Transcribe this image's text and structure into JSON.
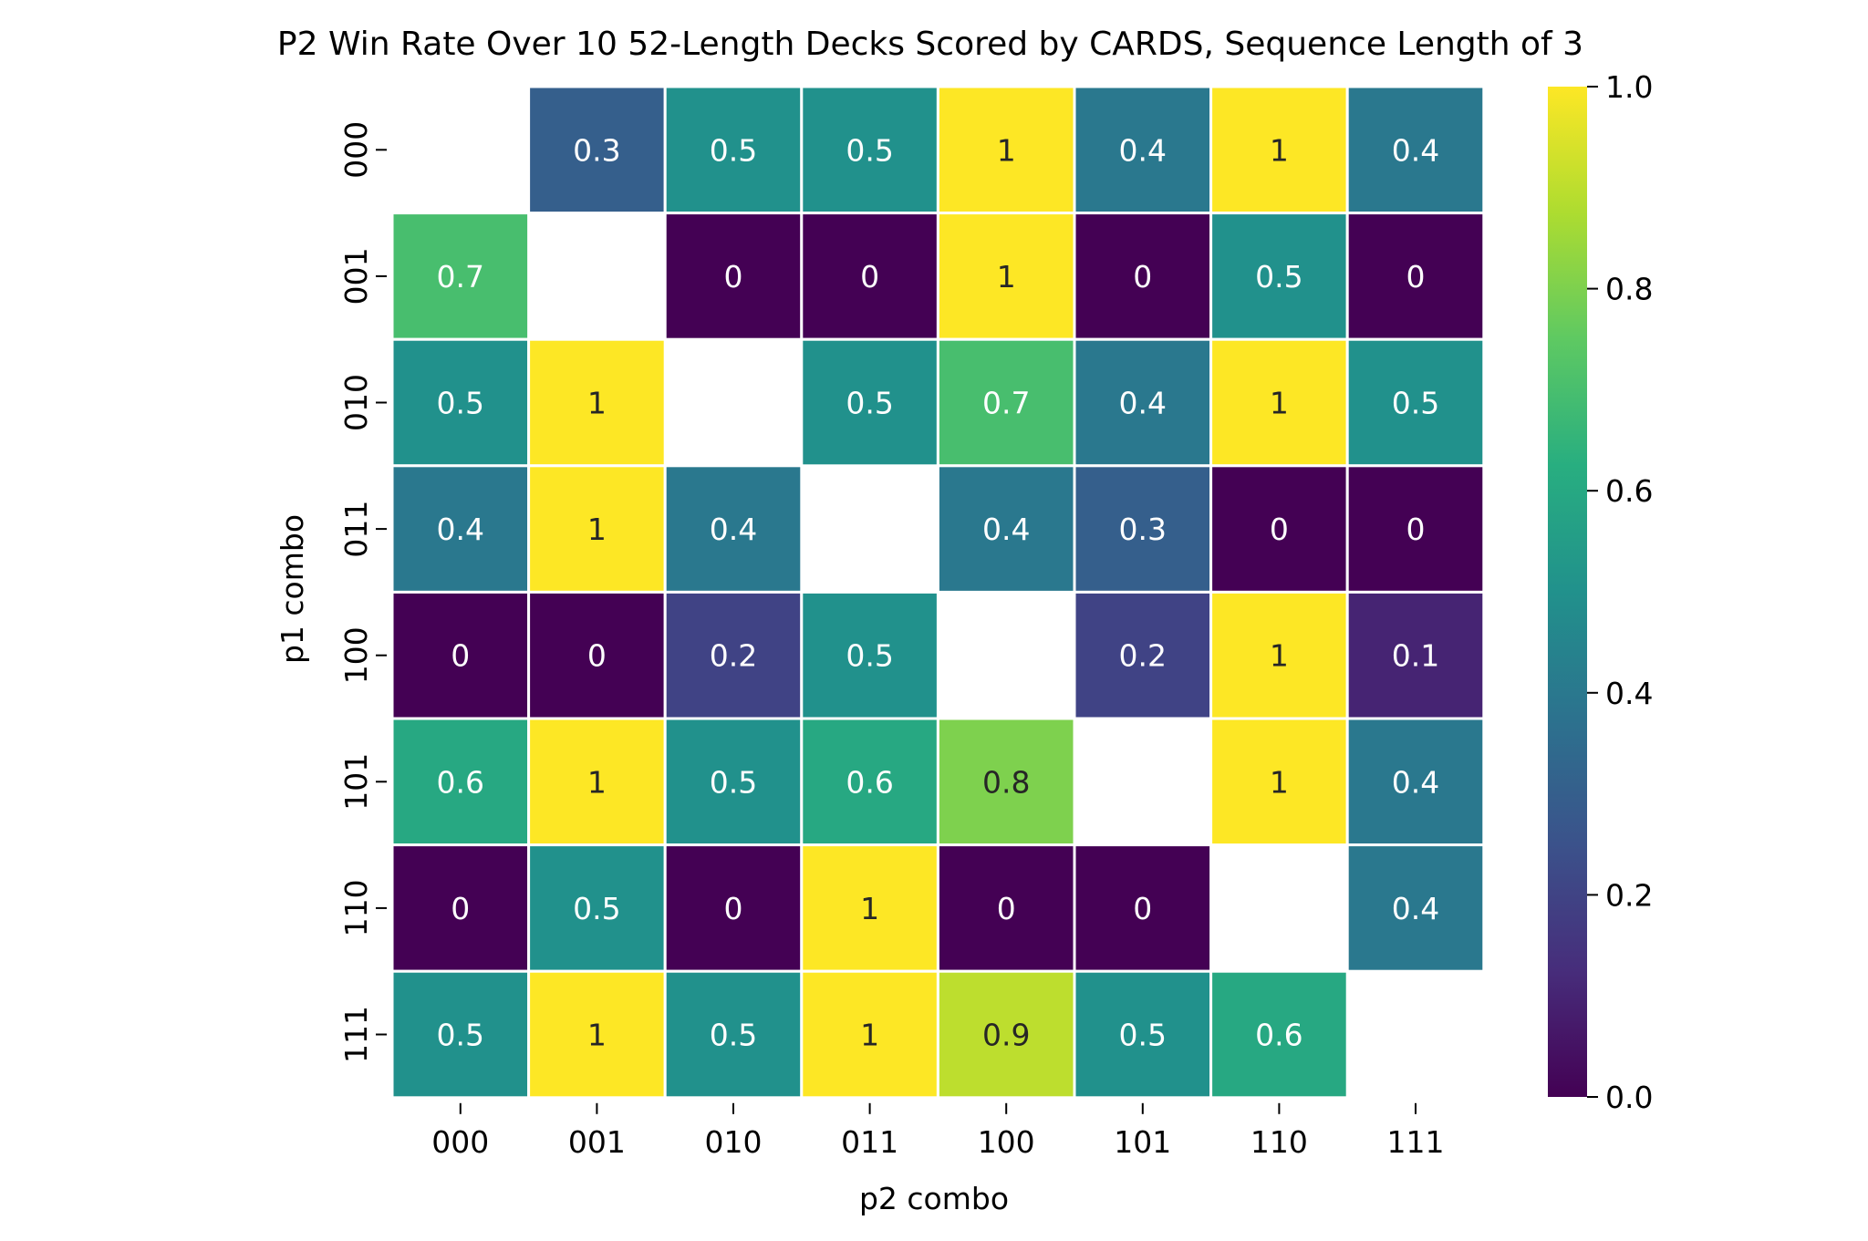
{
  "chart_data": {
    "type": "heatmap",
    "title": "P2 Win Rate Over 10 52-Length Decks Scored by CARDS, Sequence Length of 3",
    "xlabel": "p2 combo",
    "ylabel": "p1 combo",
    "x_categories": [
      "000",
      "001",
      "010",
      "011",
      "100",
      "101",
      "110",
      "111"
    ],
    "y_categories": [
      "000",
      "001",
      "010",
      "011",
      "100",
      "101",
      "110",
      "111"
    ],
    "values": [
      [
        null,
        0.3,
        0.5,
        0.5,
        1,
        0.4,
        1,
        0.4
      ],
      [
        0.7,
        null,
        0,
        0,
        1,
        0,
        0.5,
        0
      ],
      [
        0.5,
        1,
        null,
        0.5,
        0.7,
        0.4,
        1,
        0.5
      ],
      [
        0.4,
        1,
        0.4,
        null,
        0.4,
        0.3,
        0,
        0
      ],
      [
        0,
        0,
        0.2,
        0.5,
        null,
        0.2,
        1,
        0.1
      ],
      [
        0.6,
        1,
        0.5,
        0.6,
        0.8,
        null,
        1,
        0.4
      ],
      [
        0,
        0.5,
        0,
        1,
        0,
        0,
        null,
        0.4
      ],
      [
        0.5,
        1,
        0.5,
        1,
        0.9,
        0.5,
        0.6,
        null
      ]
    ],
    "value_labels": [
      [
        "",
        "0.3",
        "0.5",
        "0.5",
        "1",
        "0.4",
        "1",
        "0.4"
      ],
      [
        "0.7",
        "",
        "0",
        "0",
        "1",
        "0",
        "0.5",
        "0"
      ],
      [
        "0.5",
        "1",
        "",
        "0.5",
        "0.7",
        "0.4",
        "1",
        "0.5"
      ],
      [
        "0.4",
        "1",
        "0.4",
        "",
        "0.4",
        "0.3",
        "0",
        "0"
      ],
      [
        "0",
        "0",
        "0.2",
        "0.5",
        "",
        "0.2",
        "1",
        "0.1"
      ],
      [
        "0.6",
        "1",
        "0.5",
        "0.6",
        "0.8",
        "",
        "1",
        "0.4"
      ],
      [
        "0",
        "0.5",
        "0",
        "1",
        "0",
        "0",
        "",
        "0.4"
      ],
      [
        "0.5",
        "1",
        "0.5",
        "1",
        "0.9",
        "0.5",
        "0.6",
        ""
      ]
    ],
    "colormap": "viridis",
    "vmin": 0,
    "vmax": 1,
    "colorbar_ticks": [
      "0.0",
      "0.2",
      "0.4",
      "0.6",
      "0.8",
      "1.0"
    ],
    "grid": false
  }
}
